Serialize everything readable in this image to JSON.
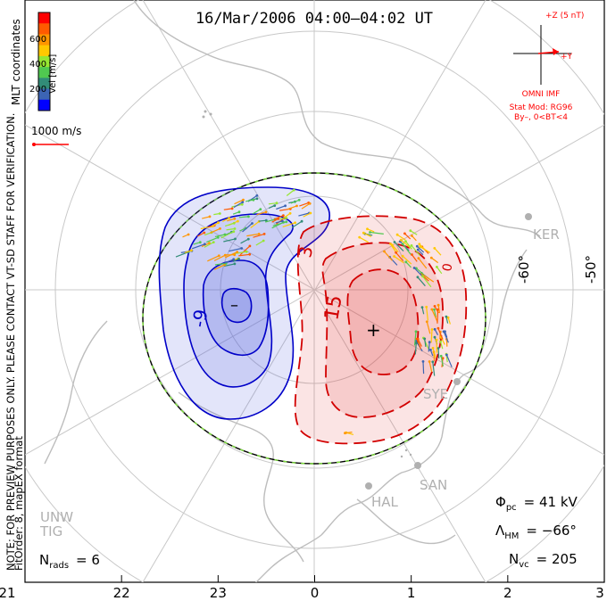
{
  "title": "16/Mar/2006 04:00–04:02 UT",
  "colorbar": {
    "unit_label": "Vel [m/s]",
    "ticks": [
      "600",
      "400",
      "200"
    ],
    "colors": [
      "#ff0000",
      "#ff5a00",
      "#ff9600",
      "#ffc800",
      "#96e632",
      "#50c850",
      "#328c78",
      "#3c64b4",
      "#0000ff"
    ]
  },
  "coord_label": "MLT coordinates",
  "reference_vector": {
    "label": "1000 m/s",
    "color": "#ff0000"
  },
  "notes": {
    "line1": "NOTE: FOR PREVIEW PURPOSES ONLY. PLEASE CONTACT VT-SD STAFF FOR VERIFICATION.",
    "line2": "FitOrder: 8, mapEX format"
  },
  "imf": {
    "z_label": "+Z (5 nT)",
    "y_label": "+Y",
    "source": "OMNI IMF",
    "model": "Stat Mod: RG96",
    "condition": "By–, 0<BT<4",
    "color": "#ff0000"
  },
  "potential": {
    "neg_color": "#0000c8",
    "pos_color": "#d20000",
    "min_symbol": "–",
    "max_symbol": "+",
    "contour_labels": {
      "neg": "-9",
      "pos_a": "3",
      "pos_b": "15",
      "pos_c": "0"
    }
  },
  "latitude_labels": [
    "-60°",
    "-50°"
  ],
  "stations": [
    "KER",
    "SYE",
    "SAN",
    "HAL",
    "UNW",
    "TIG"
  ],
  "stats": {
    "phi_pc": {
      "name": "Φ",
      "sub": "pc",
      "value": "= 41 kV"
    },
    "lambda_hm": {
      "name": "Λ",
      "sub": "HM",
      "value": "= −66°"
    },
    "n_vc": {
      "name": "N",
      "sub": "vc",
      "value": "= 205"
    },
    "n_rads": {
      "name": "N",
      "sub": "rads",
      "value": "= 6"
    }
  },
  "mlt_ticks": [
    "21",
    "22",
    "23",
    "0",
    "1",
    "2",
    "3"
  ]
}
